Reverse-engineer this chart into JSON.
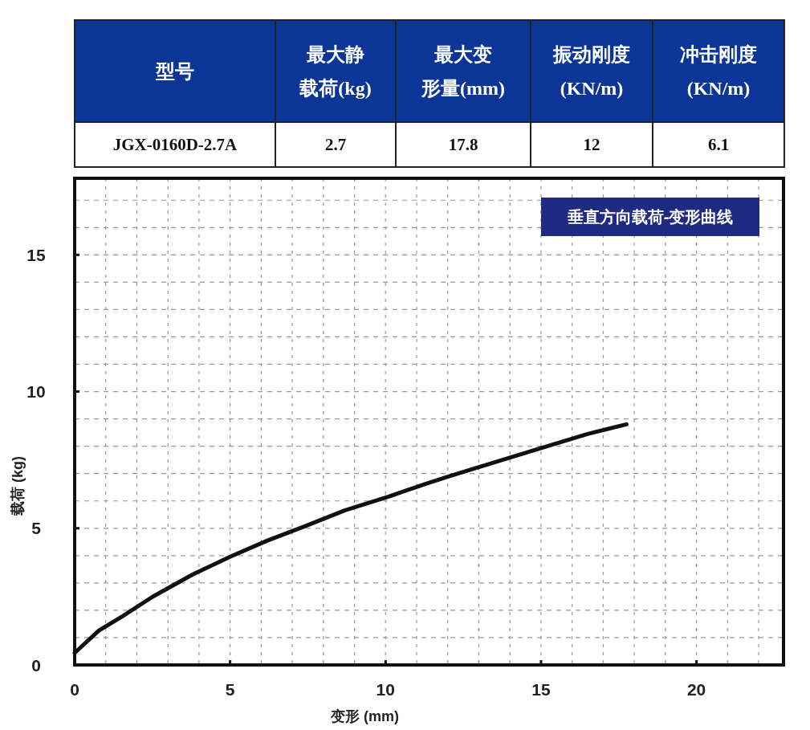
{
  "chart_data": [
    {
      "type": "other",
      "categories": [
        "型号",
        "最大静载荷(kg)",
        "最大变形量(mm)",
        "振动刚度(KN/m)",
        "冲击刚度(KN/m)"
      ],
      "annotations": [
        "JGX-0160D-2.7A",
        "2.7",
        "17.8",
        "12",
        "6.1"
      ],
      "color": "#0b3596"
    },
    {
      "type": "line",
      "title": "垂直方向载荷-变形曲线",
      "xlabel": "变形 (mm)",
      "ylabel": "载荷 (kg)",
      "series": [
        {
          "color": "#111111",
          "x": [
            0,
            0.78,
            1.55,
            2.5,
            3.8,
            5.0,
            6.2,
            7.4,
            8.7,
            10.1,
            11.3,
            12.1,
            13.7,
            15.2,
            16.5,
            17.75
          ],
          "values": [
            0.44,
            1.26,
            1.79,
            2.49,
            3.31,
            3.96,
            4.55,
            5.07,
            5.66,
            6.16,
            6.63,
            6.92,
            7.48,
            8.0,
            8.45,
            8.8
          ]
        }
      ],
      "xlim": [
        0,
        22.8
      ],
      "ylim": [
        0,
        17.8
      ],
      "xticks": [
        0,
        5,
        10,
        15,
        20
      ],
      "yticks": [
        0,
        5,
        10,
        15
      ],
      "grid": true,
      "line_style": "solid",
      "marker": "none"
    }
  ]
}
